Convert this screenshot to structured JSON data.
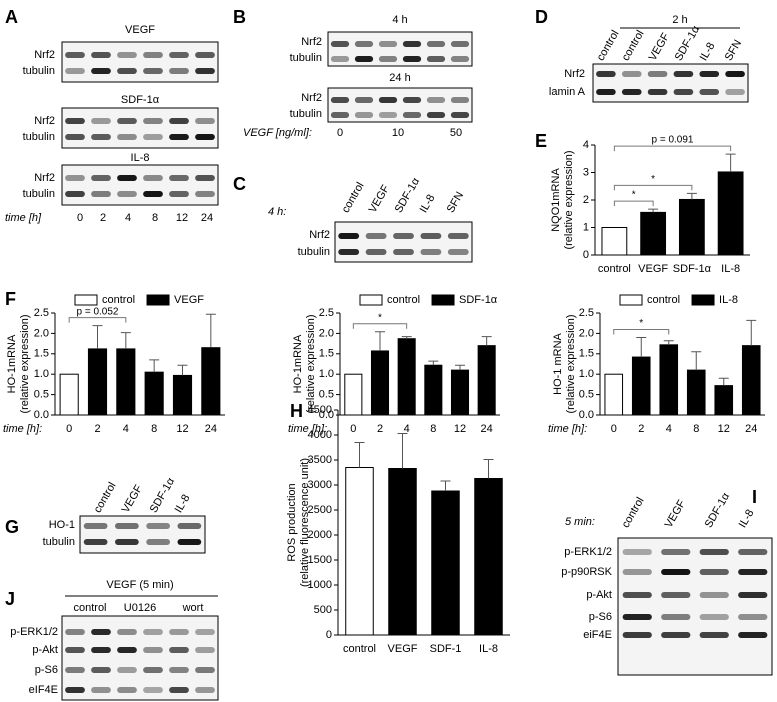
{
  "blots": {
    "A": {
      "letter": "A",
      "groups": [
        {
          "title": "VEGF",
          "rows": [
            "Nrf2",
            "tubulin"
          ]
        },
        {
          "title": "SDF-1α",
          "rows": [
            "Nrf2",
            "tubulin"
          ]
        },
        {
          "title": "IL-8",
          "rows": [
            "Nrf2",
            "tubulin"
          ]
        }
      ],
      "lane_label": "time [h]",
      "lanes": [
        "0",
        "2",
        "4",
        "8",
        "12",
        "24"
      ]
    },
    "B": {
      "letter": "B",
      "groups": [
        {
          "title": "4 h",
          "rows": [
            "Nrf2",
            "tubulin"
          ]
        },
        {
          "title": "24 h",
          "rows": [
            "Nrf2",
            "tubulin"
          ]
        }
      ],
      "lane_label": "VEGF [ng/ml]:",
      "lanes": [
        "0",
        "10",
        "50"
      ]
    },
    "C": {
      "letter": "C",
      "condition": "4 h:",
      "lanes": [
        "control",
        "VEGF",
        "SDF-1α",
        "IL-8",
        "SFN"
      ],
      "rows": [
        "Nrf2",
        "tubulin"
      ]
    },
    "D": {
      "letter": "D",
      "condition": "2 h",
      "lanes": [
        "control",
        "control",
        "VEGF",
        "SDF-1α",
        "IL-8",
        "SFN"
      ],
      "rows": [
        "Nrf2",
        "lamin A"
      ]
    },
    "G": {
      "letter": "G",
      "lanes": [
        "control",
        "VEGF",
        "SDF-1α",
        "IL-8"
      ],
      "rows": [
        "HO-1",
        "tubulin"
      ]
    },
    "I": {
      "letter": "I",
      "condition": "5 min:",
      "lanes": [
        "control",
        "VEGF",
        "SDF-1α",
        "IL-8"
      ],
      "rows": [
        "p-ERK1/2",
        "p-p90RSK",
        "p-Akt",
        "p-S6",
        "eiF4E"
      ]
    },
    "J": {
      "letter": "J",
      "condition": "VEGF (5 min)",
      "lanes": [
        "control",
        "U0126",
        "wort"
      ],
      "rows": [
        "p-ERK1/2",
        "p-Akt",
        "p-S6",
        "eIF4E"
      ]
    }
  },
  "chart_data": [
    {
      "type": "bar",
      "panel_label": "E",
      "ylabel": [
        "NQO1mRNA",
        "(relative expression)"
      ],
      "categories": [
        "control",
        "VEGF",
        "SDF-1α",
        "IL-8"
      ],
      "values": [
        1.0,
        1.55,
        2.02,
        3.02
      ],
      "errors": [
        null,
        0.12,
        0.22,
        0.65
      ],
      "colors": [
        "#ffffff",
        "#000000",
        "#000000",
        "#000000"
      ],
      "ylim": [
        0,
        4
      ],
      "yticks": [
        0,
        1,
        2,
        3,
        4
      ],
      "annotations": [
        {
          "text": "*",
          "from": 0,
          "to": 1
        },
        {
          "text": "*",
          "from": 0,
          "to": 2
        },
        {
          "text": "p = 0.091",
          "from": 0,
          "to": 3
        }
      ]
    },
    {
      "type": "bar",
      "panel_label": "F",
      "ylabel": [
        "HO-1mRNA",
        "(relative expression)"
      ],
      "xlabel": "time [h]:",
      "categories": [
        "0",
        "2",
        "4",
        "8",
        "12",
        "24"
      ],
      "series": [
        {
          "name": "control",
          "color": "#ffffff",
          "values": [
            1.0,
            null,
            null,
            null,
            null,
            null
          ],
          "errors": [
            null,
            null,
            null,
            null,
            null,
            null
          ]
        },
        {
          "name": "VEGF",
          "color": "#000000",
          "values": [
            null,
            1.62,
            1.62,
            1.05,
            0.97,
            1.65
          ],
          "errors": [
            null,
            0.57,
            0.4,
            0.3,
            0.25,
            0.82
          ]
        }
      ],
      "legend": "top",
      "ylim": [
        0,
        2.5
      ],
      "yticks": [
        {
          "value": 0,
          "label": "0.0"
        },
        0.5,
        {
          "value": 1,
          "label": "1.0"
        },
        1.5,
        {
          "value": 2,
          "label": "2.0"
        },
        2.5
      ],
      "annotations": [
        {
          "text": "p = 0.052",
          "from": 0,
          "to": 2
        }
      ]
    },
    {
      "type": "bar",
      "ylabel": [
        "HO-1mRNA",
        "(relative expression)"
      ],
      "xlabel": "time [h]:",
      "categories": [
        "0",
        "2",
        "4",
        "8",
        "12",
        "24"
      ],
      "series": [
        {
          "name": "control",
          "color": "#ffffff",
          "values": [
            1.0,
            null,
            null,
            null,
            null,
            null
          ],
          "errors": [
            null,
            null,
            null,
            null,
            null,
            null
          ]
        },
        {
          "name": "SDF-1α",
          "color": "#000000",
          "values": [
            null,
            1.57,
            1.87,
            1.22,
            1.1,
            1.7
          ],
          "errors": [
            null,
            0.47,
            0.05,
            0.1,
            0.12,
            0.22
          ]
        }
      ],
      "legend": "top",
      "ylim": [
        0,
        2.5
      ],
      "yticks": [
        {
          "value": 0,
          "label": "0.0"
        },
        0.5,
        {
          "value": 1,
          "label": "1.0"
        },
        1.5,
        {
          "value": 2,
          "label": "2.0"
        },
        2.5
      ],
      "annotations": [
        {
          "text": "*",
          "from": 0,
          "to": 2
        }
      ]
    },
    {
      "type": "bar",
      "ylabel": [
        "HO-1 mRNA",
        "(relative expression)"
      ],
      "xlabel": "time [h]:",
      "categories": [
        "0",
        "2",
        "4",
        "8",
        "12",
        "24"
      ],
      "series": [
        {
          "name": "control",
          "color": "#ffffff",
          "values": [
            1.0,
            null,
            null,
            null,
            null,
            null
          ],
          "errors": [
            null,
            null,
            null,
            null,
            null,
            null
          ]
        },
        {
          "name": "IL-8",
          "color": "#000000",
          "values": [
            null,
            1.42,
            1.72,
            1.1,
            0.72,
            1.7
          ],
          "errors": [
            null,
            0.48,
            0.1,
            0.45,
            0.18,
            0.62
          ]
        }
      ],
      "legend": "top",
      "ylim": [
        0,
        2.5
      ],
      "yticks": [
        {
          "value": 0,
          "label": "0.0"
        },
        0.5,
        {
          "value": 1,
          "label": "1.0"
        },
        1.5,
        {
          "value": 2,
          "label": "2.0"
        },
        2.5
      ],
      "annotations": [
        {
          "text": "*",
          "from": 0,
          "to": 2
        }
      ]
    },
    {
      "type": "bar",
      "panel_label": "H",
      "ylabel": [
        "ROS production",
        "(relative fluorescence unit)"
      ],
      "categories": [
        "control",
        "VEGF",
        "SDF-1",
        "IL-8"
      ],
      "values": [
        3350,
        3330,
        2880,
        3130
      ],
      "errors": [
        500,
        700,
        200,
        380
      ],
      "colors": [
        "#ffffff",
        "#000000",
        "#000000",
        "#000000"
      ],
      "ylim": [
        0,
        4500
      ],
      "yticks": [
        0,
        500,
        1000,
        1500,
        2000,
        2500,
        3000,
        3500,
        4000,
        4500
      ]
    }
  ]
}
